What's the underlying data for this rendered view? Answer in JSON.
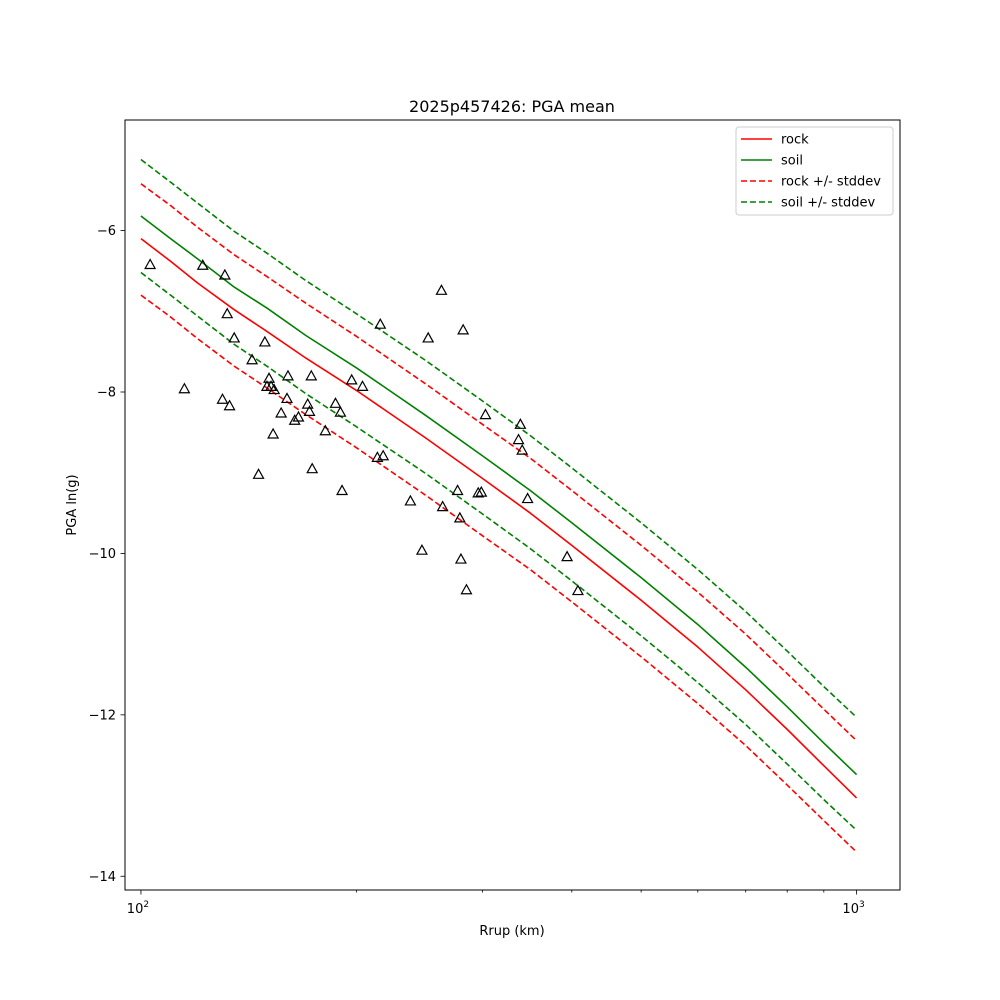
{
  "chart_data": {
    "type": "line",
    "title": "2025p457426: PGA mean",
    "xlabel": "Rrup (km)",
    "ylabel": "PGA ln(g)",
    "xscale": "log",
    "xlim": [
      95,
      1150
    ],
    "ylim": [
      -14.17,
      -4.63
    ],
    "x_ticks": [
      {
        "value": 100,
        "base": "10",
        "exp": "2"
      },
      {
        "value": 1000,
        "base": "10",
        "exp": "3"
      }
    ],
    "x_minor_ticks": [
      200,
      300,
      400,
      500,
      600,
      700,
      800,
      900
    ],
    "y_ticks": [
      {
        "value": -6,
        "label": "−6"
      },
      {
        "value": -8,
        "label": "−8"
      },
      {
        "value": -10,
        "label": "−10"
      },
      {
        "value": -12,
        "label": "−12"
      },
      {
        "value": -14,
        "label": "−14"
      }
    ],
    "grid": false,
    "legend_position": "top-right",
    "x": [
      100,
      110,
      120,
      135,
      150,
      170,
      200,
      250,
      300,
      350,
      400,
      500,
      600,
      700,
      800,
      900,
      1000
    ],
    "series": [
      {
        "name": "rock",
        "style": "solid",
        "color": "#ff0000",
        "values": [
          -6.1,
          -6.38,
          -6.65,
          -6.98,
          -7.25,
          -7.58,
          -7.98,
          -8.57,
          -9.07,
          -9.5,
          -9.9,
          -10.58,
          -11.16,
          -11.69,
          -12.18,
          -12.63,
          -13.03
        ]
      },
      {
        "name": "soil",
        "style": "solid",
        "color": "#008000",
        "values": [
          -5.82,
          -6.1,
          -6.35,
          -6.7,
          -6.96,
          -7.3,
          -7.7,
          -8.29,
          -8.79,
          -9.22,
          -9.62,
          -10.3,
          -10.88,
          -11.41,
          -11.9,
          -12.35,
          -12.74
        ]
      },
      {
        "name": "rock +/- stddev",
        "style": "dashed",
        "color": "#ff0000",
        "values": [
          -5.42,
          -5.69,
          -5.96,
          -6.3,
          -6.57,
          -6.9,
          -7.31,
          -7.9,
          -8.4,
          -8.82,
          -9.22,
          -9.9,
          -10.48,
          -11.0,
          -11.49,
          -11.93,
          -12.32
        ]
      },
      {
        "name": "",
        "style": "dashed",
        "color": "#ff0000",
        "values": [
          -6.8,
          -7.07,
          -7.34,
          -7.68,
          -7.95,
          -8.28,
          -8.69,
          -9.28,
          -9.78,
          -10.2,
          -10.6,
          -11.28,
          -11.86,
          -12.38,
          -12.87,
          -13.31,
          -13.7
        ]
      },
      {
        "name": "soil +/- stddev",
        "style": "dashed",
        "color": "#008000",
        "values": [
          -5.12,
          -5.4,
          -5.66,
          -6.01,
          -6.28,
          -6.62,
          -7.03,
          -7.61,
          -8.11,
          -8.54,
          -8.94,
          -9.62,
          -10.2,
          -10.72,
          -11.21,
          -11.65,
          -12.03
        ]
      },
      {
        "name": "",
        "style": "dashed",
        "color": "#008000",
        "values": [
          -6.52,
          -6.8,
          -7.06,
          -7.41,
          -7.68,
          -8.02,
          -8.43,
          -9.01,
          -9.51,
          -9.94,
          -10.34,
          -11.02,
          -11.6,
          -12.12,
          -12.61,
          -13.05,
          -13.43
        ]
      }
    ],
    "observations": {
      "marker": "open-triangle",
      "color": "#000000",
      "points": [
        {
          "x": 103,
          "y": -6.42
        },
        {
          "x": 115,
          "y": -7.96
        },
        {
          "x": 122,
          "y": -6.43
        },
        {
          "x": 130,
          "y": -8.09
        },
        {
          "x": 131,
          "y": -6.55
        },
        {
          "x": 132,
          "y": -7.03
        },
        {
          "x": 133,
          "y": -8.17
        },
        {
          "x": 135,
          "y": -7.33
        },
        {
          "x": 143,
          "y": -7.6
        },
        {
          "x": 146,
          "y": -9.02
        },
        {
          "x": 149,
          "y": -7.38
        },
        {
          "x": 150,
          "y": -7.93
        },
        {
          "x": 151,
          "y": -7.83
        },
        {
          "x": 152,
          "y": -7.93
        },
        {
          "x": 153,
          "y": -8.52
        },
        {
          "x": 153.5,
          "y": -7.97
        },
        {
          "x": 157,
          "y": -8.26
        },
        {
          "x": 160,
          "y": -8.08
        },
        {
          "x": 160.5,
          "y": -7.8
        },
        {
          "x": 164,
          "y": -8.35
        },
        {
          "x": 166,
          "y": -8.31
        },
        {
          "x": 171,
          "y": -8.15
        },
        {
          "x": 172,
          "y": -8.24
        },
        {
          "x": 173,
          "y": -7.8
        },
        {
          "x": 173.5,
          "y": -8.95
        },
        {
          "x": 181,
          "y": -8.48
        },
        {
          "x": 187,
          "y": -8.14
        },
        {
          "x": 190,
          "y": -8.25
        },
        {
          "x": 191,
          "y": -9.22
        },
        {
          "x": 197,
          "y": -7.85
        },
        {
          "x": 204,
          "y": -7.93
        },
        {
          "x": 214,
          "y": -8.81
        },
        {
          "x": 216,
          "y": -7.16
        },
        {
          "x": 218,
          "y": -8.79
        },
        {
          "x": 238,
          "y": -9.35
        },
        {
          "x": 247,
          "y": -9.96
        },
        {
          "x": 252,
          "y": -7.33
        },
        {
          "x": 263,
          "y": -6.74
        },
        {
          "x": 264,
          "y": -9.42
        },
        {
          "x": 277,
          "y": -9.22
        },
        {
          "x": 279,
          "y": -9.56
        },
        {
          "x": 280,
          "y": -10.07
        },
        {
          "x": 282,
          "y": -7.23
        },
        {
          "x": 285,
          "y": -10.45
        },
        {
          "x": 296,
          "y": -9.25
        },
        {
          "x": 299,
          "y": -9.24
        },
        {
          "x": 303,
          "y": -8.28
        },
        {
          "x": 337,
          "y": -8.59
        },
        {
          "x": 339,
          "y": -8.4
        },
        {
          "x": 341,
          "y": -8.72
        },
        {
          "x": 347,
          "y": -9.32
        },
        {
          "x": 394,
          "y": -10.04
        },
        {
          "x": 408,
          "y": -10.46
        }
      ]
    }
  }
}
